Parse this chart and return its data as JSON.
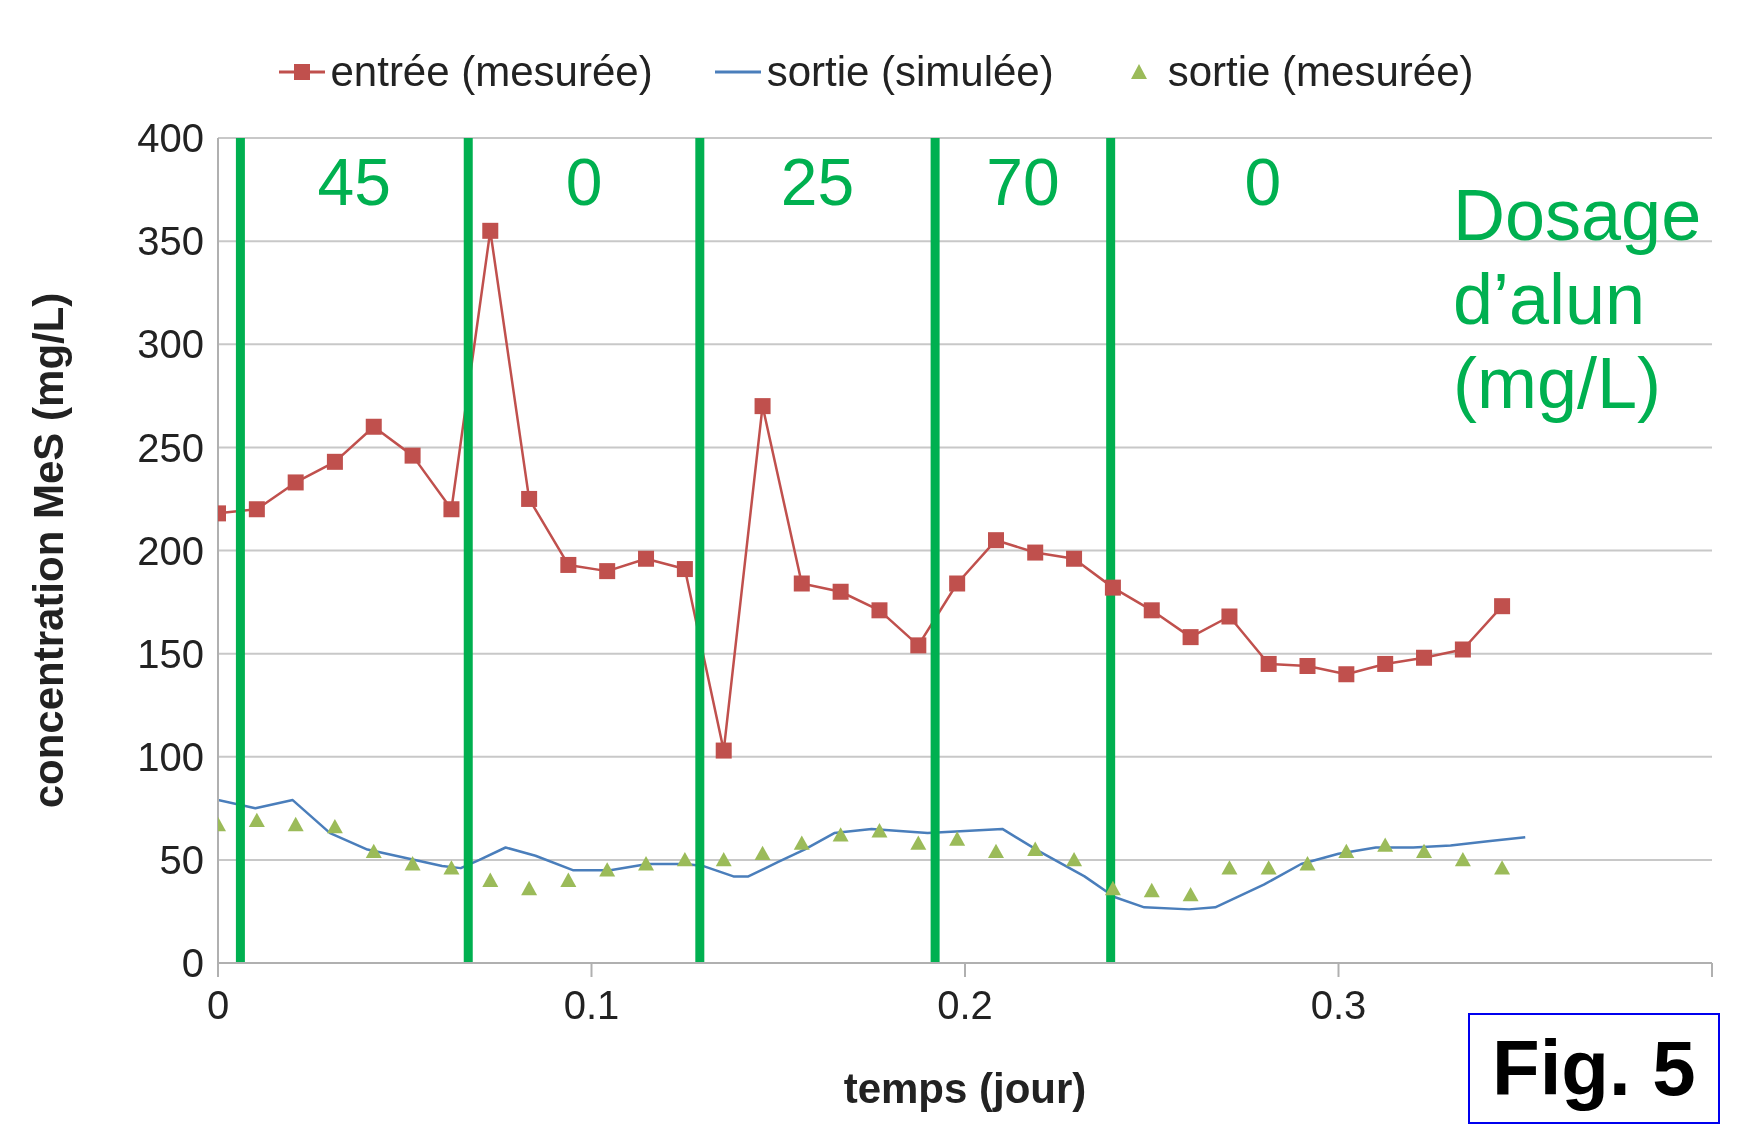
{
  "chart_data": {
    "type": "line",
    "xlabel": "temps (jour)",
    "ylabel": "concentration  MeS (mg/L)",
    "xlim": [
      0,
      0.4
    ],
    "xticks": [
      0,
      0.1,
      0.2,
      0.3,
      {
        "value": 0.4,
        "label": null
      }
    ],
    "ylim": [
      0,
      400
    ],
    "yticks": [
      0,
      50,
      100,
      150,
      200,
      250,
      300,
      350,
      400
    ],
    "grid": "y",
    "legend": "top",
    "series": [
      {
        "name": "entrée (mesurée)",
        "type": "line",
        "marker": "square",
        "color": "#c0504d",
        "x": [
          0,
          0.0104,
          0.0208,
          0.0313,
          0.0417,
          0.0521,
          0.0625,
          0.0729,
          0.0833,
          0.0938,
          0.1042,
          0.1146,
          0.125,
          0.1354,
          0.1458,
          0.1563,
          0.1667,
          0.1771,
          0.1875,
          0.1979,
          0.2083,
          0.2188,
          0.2292,
          0.2396,
          0.25,
          0.2604,
          0.2708,
          0.2813,
          0.2917,
          0.3021,
          0.3125,
          0.3229,
          0.3333,
          0.3438
        ],
        "values": [
          218,
          220,
          233,
          243,
          260,
          246,
          220,
          355,
          225,
          193,
          190,
          196,
          191,
          103,
          270,
          184,
          180,
          171,
          154,
          184,
          205,
          199,
          196,
          182,
          171,
          158,
          168,
          145,
          144,
          140,
          145,
          148,
          152,
          173
        ]
      },
      {
        "name": "sortie (simulée)",
        "type": "line",
        "marker": "none",
        "color": "#4a7ebb",
        "x": [
          0,
          0.01,
          0.02,
          0.03,
          0.04,
          0.05,
          0.06,
          0.065,
          0.07,
          0.077,
          0.085,
          0.095,
          0.105,
          0.115,
          0.125,
          0.13,
          0.138,
          0.142,
          0.15,
          0.157,
          0.165,
          0.175,
          0.19,
          0.2,
          0.21,
          0.22,
          0.232,
          0.24,
          0.248,
          0.26,
          0.267,
          0.28,
          0.29,
          0.3,
          0.31,
          0.32,
          0.33,
          0.34,
          0.35
        ],
        "values": [
          79,
          75,
          79,
          63,
          55,
          51,
          47,
          46,
          50,
          56,
          52,
          45,
          45,
          48,
          48,
          47,
          42,
          42,
          49,
          55,
          63,
          65,
          63,
          64,
          65,
          54,
          42,
          32,
          27,
          26,
          27,
          38,
          48,
          53,
          56,
          56,
          57,
          59,
          61
        ]
      },
      {
        "name": "sortie (mesurée)",
        "type": "scatter",
        "marker": "triangle",
        "color": "#9bbb59",
        "x": [
          0,
          0.0104,
          0.0208,
          0.0313,
          0.0417,
          0.0521,
          0.0625,
          0.0729,
          0.0833,
          0.0938,
          0.1042,
          0.1146,
          0.125,
          0.1354,
          0.1458,
          0.1563,
          0.1667,
          0.1771,
          0.1875,
          0.1979,
          0.2083,
          0.2188,
          0.2292,
          0.2396,
          0.25,
          0.2604,
          0.2708,
          0.2813,
          0.2917,
          0.3021,
          0.3125,
          0.3229,
          0.3333,
          0.3438
        ],
        "values": [
          67,
          69,
          67,
          66,
          54,
          48,
          46,
          40,
          36,
          40,
          45,
          48,
          50,
          50,
          53,
          58,
          62,
          64,
          58,
          60,
          54,
          55,
          50,
          36,
          35,
          33,
          46,
          46,
          48,
          54,
          57,
          54,
          50,
          46
        ]
      }
    ],
    "ref_lines": [
      {
        "axis": "x",
        "value": 0.006,
        "color": "#00b050"
      },
      {
        "axis": "x",
        "value": 0.067,
        "color": "#00b050"
      },
      {
        "axis": "x",
        "value": 0.129,
        "color": "#00b050"
      },
      {
        "axis": "x",
        "value": 0.192,
        "color": "#00b050"
      },
      {
        "axis": "x",
        "value": 0.239,
        "color": "#00b050"
      }
    ],
    "annotations": [
      "45",
      "0",
      "25",
      "70",
      "0",
      "Dosage d’alun (mg/L)",
      "Fig. 5"
    ]
  }
}
